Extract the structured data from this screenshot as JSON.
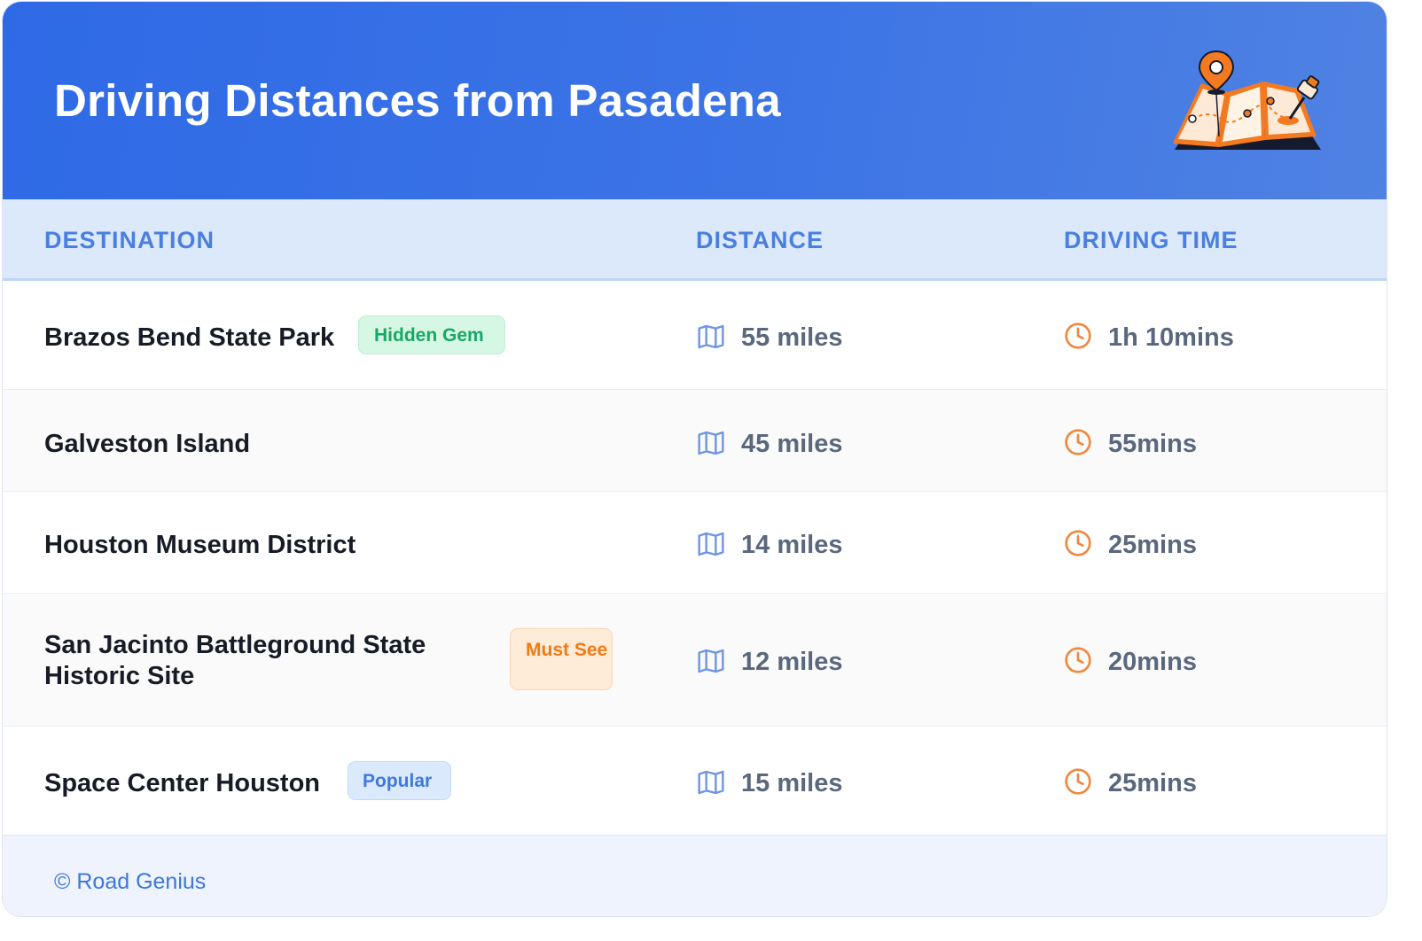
{
  "header": {
    "title": "Driving Distances from Pasadena",
    "illustration_icon": "folded-map-with-pin-icon"
  },
  "table": {
    "columns": [
      "DESTINATION",
      "DISTANCE",
      "DRIVING TIME"
    ],
    "distance_icon": "map-icon",
    "time_icon": "clock-icon",
    "rows": [
      {
        "destination": "Brazos Bend State Park",
        "badge": "Hidden Gem",
        "badge_color": "#17a866",
        "distance": "55 miles",
        "time": "1h 10mins"
      },
      {
        "destination": "Galveston Island",
        "badge": "",
        "distance": "45 miles",
        "time": "55mins"
      },
      {
        "destination": "Houston Museum District",
        "badge": "",
        "distance": "14 miles",
        "time": "25mins"
      },
      {
        "destination": "San Jacinto Battleground State Historic Site",
        "badge": "Must See",
        "badge_color": "#f07a16",
        "distance": "12 miles",
        "time": "20mins"
      },
      {
        "destination": "Space Center Houston",
        "badge": "Popular",
        "badge_color": "#3f79df",
        "distance": "15 miles",
        "time": "25mins"
      }
    ]
  },
  "footer": {
    "credit": "© Road Genius"
  },
  "colors": {
    "header_gradient_start": "#2f6ae6",
    "header_gradient_end": "#4f82e2",
    "column_header_text": "#4a7fe0",
    "distance_icon": "#6e95e3",
    "time_icon": "#f0883e"
  }
}
